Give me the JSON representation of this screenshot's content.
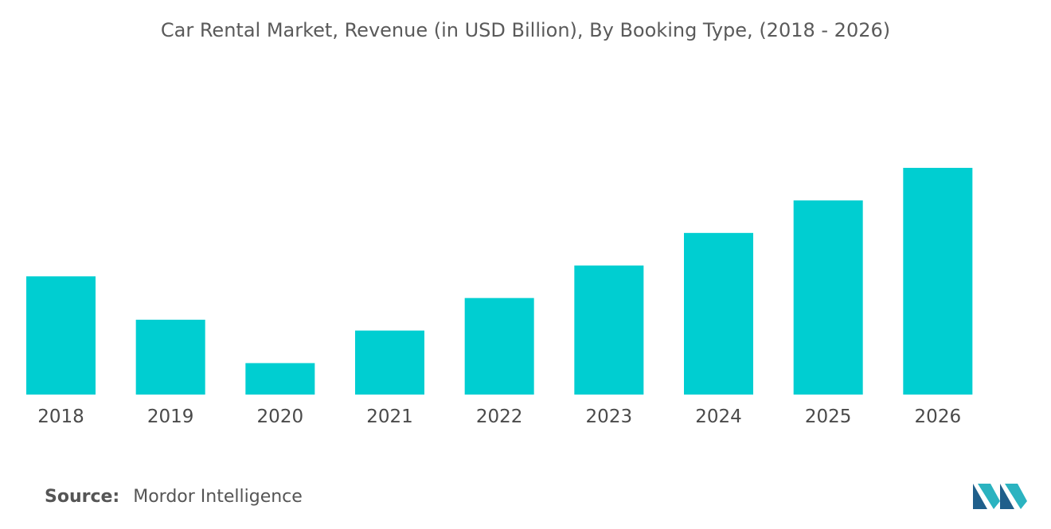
{
  "chart_data": {
    "type": "bar",
    "title": "Car Rental Market, Revenue (in USD Billion), By Booking Type, (2018 - 2026)",
    "categories": [
      "2018",
      "2019",
      "2020",
      "2021",
      "2022",
      "2023",
      "2024",
      "2025",
      "2026"
    ],
    "values": [
      54.5,
      34.5,
      14.5,
      29.5,
      44.5,
      59.5,
      74.5,
      89.5,
      104.5
    ],
    "ylim": [
      0,
      110
    ],
    "grid": false,
    "legend": "none",
    "bar_color": "#00CED1"
  },
  "source": {
    "label": "Source:",
    "text": "Mordor Intelligence"
  },
  "logo": {
    "icon": "mordor-intelligence-logo-icon",
    "colors": [
      "#1f5f8b",
      "#2bb3c0"
    ]
  }
}
